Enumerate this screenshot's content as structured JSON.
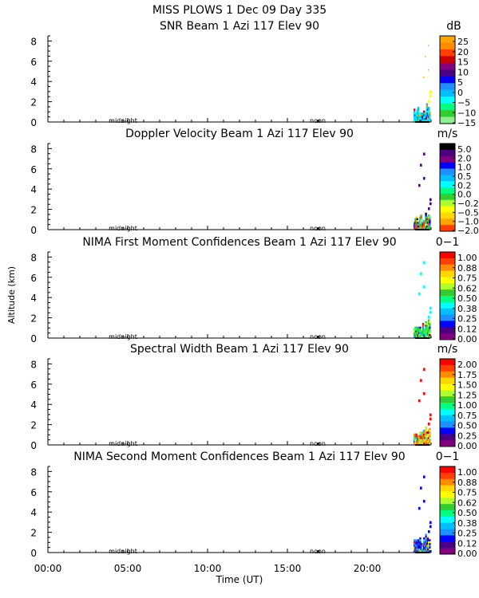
{
  "header": {
    "title": "MISS PLOWS    1 Dec 09 Day 335"
  },
  "ylabel": "Altitude (km)",
  "xlabel": "Time (UT)",
  "x_ticks": [
    "00:00",
    "05:00",
    "10:00",
    "15:00",
    "20:00"
  ],
  "marker_labels": [
    "midnight",
    "noon"
  ],
  "y_ticks": [
    "0",
    "2",
    "4",
    "6",
    "8"
  ],
  "colors": {
    "frame": "#000000",
    "background": "#ffffff"
  },
  "chart_data": [
    {
      "type": "heatmap",
      "title": "SNR Beam 1 Azi 117 Elev 90",
      "unit": "dB",
      "xlim_hours": [
        0,
        24
      ],
      "ylim_km": [
        0,
        8.5
      ],
      "colorbar": {
        "labels": [
          "25",
          "20",
          "15",
          "10",
          "5",
          "0",
          "−5",
          "−10",
          "−15"
        ],
        "colors": [
          "#ffa500",
          "#ff8c00",
          "#ff4000",
          "#cc0000",
          "#800080",
          "#4b0082",
          "#0000ff",
          "#1e90ff",
          "#00bfff",
          "#00ffff",
          "#00ff80",
          "#32cd32",
          "#90ee90"
        ]
      },
      "echoes": [
        {
          "t": 23.4,
          "z_top": 1.1,
          "dominant": "#00ffff"
        },
        {
          "t": 23.7,
          "z_top": 1.3,
          "dominant": "#00bfff"
        },
        {
          "t": 23.9,
          "z_top": 3.0,
          "dominant": "#ffff00"
        }
      ]
    },
    {
      "type": "heatmap",
      "title": "Doppler Velocity Beam 1 Azi 117 Elev 90",
      "unit": "m/s",
      "xlim_hours": [
        0,
        24
      ],
      "ylim_km": [
        0,
        8.5
      ],
      "colorbar": {
        "labels": [
          "5.0",
          "2.0",
          "1.0",
          "0.5",
          "0.2",
          "0.0",
          "−0.2",
          "−0.5",
          "−1.0",
          "−2.0"
        ],
        "colors": [
          "#000000",
          "#4b0082",
          "#800080",
          "#0000ff",
          "#1e90ff",
          "#00bfff",
          "#00ffff",
          "#00ff80",
          "#32cd32",
          "#adff2f",
          "#ffff00",
          "#ffd700",
          "#ffa500",
          "#ff4000"
        ]
      },
      "echoes": [
        {
          "t": 23.4,
          "z_top": 1.2,
          "dominant": "#32cd32"
        },
        {
          "t": 23.7,
          "z_top": 1.8,
          "dominant": "#ff4000"
        },
        {
          "t": 23.2,
          "z_top": 4.4,
          "dominant": "#4b0082"
        }
      ]
    },
    {
      "type": "heatmap",
      "title": "NIMA First Moment Confidences Beam 1 Azi 117 Elev 90",
      "unit": "0−1",
      "xlim_hours": [
        0,
        24
      ],
      "ylim_km": [
        0,
        8.5
      ],
      "colorbar": {
        "labels": [
          "1.00",
          "0.88",
          "0.75",
          "0.62",
          "0.50",
          "0.38",
          "0.25",
          "0.12",
          "0.00"
        ],
        "colors": [
          "#ff0000",
          "#ff4000",
          "#ff8c00",
          "#ffd700",
          "#ffff00",
          "#adff2f",
          "#32cd32",
          "#00ff80",
          "#00ffff",
          "#00bfff",
          "#1e90ff",
          "#0000ff",
          "#4b0082",
          "#800080"
        ]
      },
      "echoes": [
        {
          "t": 23.4,
          "z_top": 1.1,
          "dominant": "#32cd32"
        },
        {
          "t": 23.7,
          "z_top": 1.6,
          "dominant": "#00ff80"
        },
        {
          "t": 23.5,
          "z_top": 7.5,
          "dominant": "#00ffff"
        }
      ]
    },
    {
      "type": "heatmap",
      "title": "Spectral Width Beam 1 Azi 117 Elev 90",
      "unit": "m/s",
      "xlim_hours": [
        0,
        24
      ],
      "ylim_km": [
        0,
        8.5
      ],
      "colorbar": {
        "labels": [
          "2.00",
          "1.75",
          "1.50",
          "1.25",
          "1.00",
          "0.75",
          "0.50",
          "0.25",
          "0.00"
        ],
        "colors": [
          "#ff0000",
          "#ff4000",
          "#ff8c00",
          "#ffd700",
          "#ffff00",
          "#adff2f",
          "#32cd32",
          "#00ff80",
          "#00ffff",
          "#00bfff",
          "#1e90ff",
          "#0000ff",
          "#4b0082",
          "#800080"
        ]
      },
      "echoes": [
        {
          "t": 23.4,
          "z_top": 1.1,
          "dominant": "#ff8c00"
        },
        {
          "t": 23.7,
          "z_top": 1.8,
          "dominant": "#ffd700"
        },
        {
          "t": 23.2,
          "z_top": 7.2,
          "dominant": "#ff0000"
        }
      ]
    },
    {
      "type": "heatmap",
      "title": "NIMA Second Moment Confidences Beam 1 Azi 117 Elev 90",
      "unit": "0−1",
      "xlim_hours": [
        0,
        24
      ],
      "ylim_km": [
        0,
        8.5
      ],
      "colorbar": {
        "labels": [
          "1.00",
          "0.88",
          "0.75",
          "0.62",
          "0.50",
          "0.38",
          "0.25",
          "0.12",
          "0.00"
        ],
        "colors": [
          "#ff0000",
          "#ff4000",
          "#ff8c00",
          "#ffd700",
          "#ffff00",
          "#adff2f",
          "#32cd32",
          "#00ff80",
          "#00ffff",
          "#00bfff",
          "#1e90ff",
          "#0000ff",
          "#4b0082",
          "#800080"
        ]
      },
      "echoes": [
        {
          "t": 23.4,
          "z_top": 1.1,
          "dominant": "#1e90ff"
        },
        {
          "t": 23.7,
          "z_top": 1.8,
          "dominant": "#0000ff"
        },
        {
          "t": 23.6,
          "z_top": 7.9,
          "dominant": "#0000ff"
        }
      ]
    }
  ]
}
